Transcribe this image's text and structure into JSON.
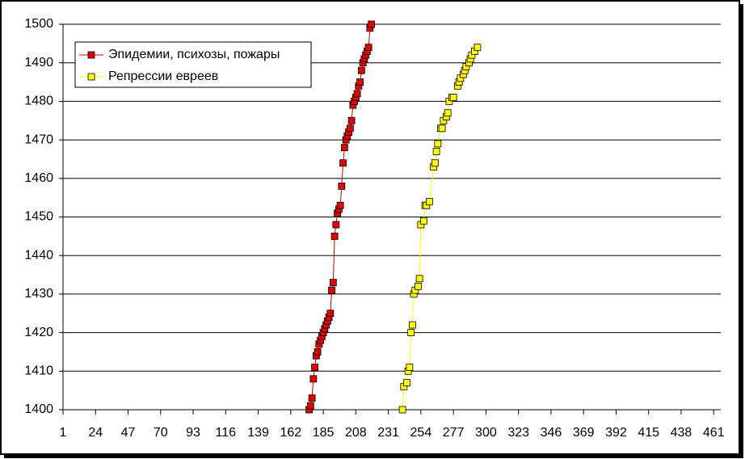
{
  "chart_data": {
    "type": "scatter",
    "xlim": [
      1,
      466
    ],
    "ylim": [
      1400,
      1500
    ],
    "xticks": [
      1,
      24,
      47,
      70,
      93,
      116,
      139,
      162,
      185,
      208,
      231,
      254,
      277,
      300,
      323,
      346,
      369,
      392,
      415,
      438,
      461
    ],
    "yticks": [
      1400,
      1410,
      1420,
      1430,
      1440,
      1450,
      1460,
      1470,
      1480,
      1490,
      1500
    ],
    "grid": true,
    "legend": "upper left",
    "series": [
      {
        "name": "Эпидемии, психозы, пожары",
        "color": "#e00000",
        "line_color": "#c00000",
        "x": [
          175,
          176,
          177,
          178,
          179,
          180,
          181,
          182,
          183,
          184,
          185,
          186,
          187,
          188,
          189,
          190,
          191,
          192,
          193,
          194,
          195,
          196,
          197,
          198,
          199,
          200,
          201,
          202,
          203,
          204,
          205,
          206,
          207,
          208,
          209,
          210,
          211,
          212,
          213,
          214,
          215,
          216,
          217,
          218,
          219
        ],
        "values": [
          1400,
          1401,
          1403,
          1408,
          1411,
          1414,
          1415,
          1417,
          1418,
          1419,
          1420,
          1421,
          1422,
          1423,
          1424,
          1425,
          1431,
          1433,
          1445,
          1448,
          1451,
          1452,
          1453,
          1458,
          1464,
          1468,
          1470,
          1471,
          1472,
          1473,
          1475,
          1479,
          1480,
          1481,
          1482,
          1484,
          1485,
          1488,
          1490,
          1491,
          1492,
          1493,
          1494,
          1499,
          1500
        ]
      },
      {
        "name": "Репрессии евреев",
        "color": "#ffff00",
        "line_color": "#ffff00",
        "x": [
          241,
          242,
          244,
          245,
          246,
          247,
          248,
          249,
          250,
          252,
          253,
          254,
          256,
          257,
          258,
          260,
          263,
          264,
          265,
          266,
          268,
          269,
          270,
          272,
          273,
          274,
          276,
          277,
          280,
          281,
          282,
          284,
          285,
          286,
          288,
          289,
          290,
          292,
          294
        ],
        "values": [
          1400,
          1406,
          1407,
          1410,
          1411,
          1420,
          1422,
          1430,
          1431,
          1432,
          1434,
          1448,
          1449,
          1453,
          1453,
          1454,
          1463,
          1464,
          1467,
          1469,
          1473,
          1473,
          1475,
          1476,
          1477,
          1480,
          1481,
          1481,
          1484,
          1485,
          1486,
          1487,
          1488,
          1489,
          1490,
          1491,
          1492,
          1493,
          1494
        ]
      }
    ]
  }
}
